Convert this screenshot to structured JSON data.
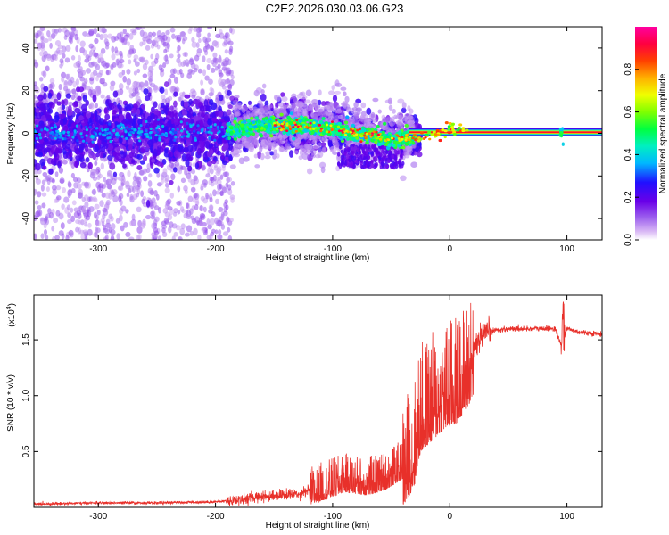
{
  "figure_title": "C2E2.2026.030.03.06.G23",
  "chart_data": [
    {
      "type": "heatmap",
      "title": "C2E2.2026.030.03.06.G23",
      "xlabel": "Height of straight line (km)",
      "ylabel": "Frequency (Hz)",
      "xlim": [
        -355,
        130
      ],
      "ylim": [
        -50,
        50
      ],
      "x_ticks": [
        -300,
        -200,
        -100,
        0,
        100
      ],
      "x_tick_labels": [
        "-300",
        "-200",
        "-100",
        "0",
        "100"
      ],
      "y_ticks": [
        -40,
        -20,
        0,
        20,
        40
      ],
      "y_tick_labels": [
        "-40",
        "-20",
        "0",
        "20",
        "40"
      ],
      "colorbar": {
        "label": "Normalized spectral amplitude",
        "range": [
          0,
          1
        ],
        "ticks": [
          0.0,
          0.2,
          0.4,
          0.6,
          0.8
        ],
        "tick_labels": [
          "0.0",
          "0.2",
          "0.4",
          "0.6",
          "0.8"
        ],
        "colormap": "rainbow (white-purple-blue-cyan-green-yellow-orange-red-magenta)"
      },
      "features": {
        "diffuse_scatter_region_km": [
          -355,
          -185
        ],
        "main_band_center_hz": [
          [
            -350,
            0
          ],
          [
            -200,
            1
          ],
          [
            -150,
            4
          ],
          [
            -110,
            3
          ],
          [
            -80,
            0
          ],
          [
            -50,
            -3
          ],
          [
            -30,
            -2
          ],
          [
            0,
            1
          ],
          [
            20,
            0.5
          ],
          [
            130,
            0.5
          ]
        ],
        "narrow_strong_band_start_km": -35,
        "narrow_strong_band_end_km": 130,
        "narrow_strong_band_freq_hz": 0.5,
        "spike_km": 95
      }
    },
    {
      "type": "line",
      "xlabel": "Height of straight line (km)",
      "ylabel": "SNR (10 * v/v)",
      "y_multiplier_label": "(x10",
      "y_multiplier_exp": "4",
      "y_multiplier_close": ")",
      "xlim": [
        -355,
        130
      ],
      "ylim": [
        0,
        1.9
      ],
      "x_ticks": [
        -300,
        -200,
        -100,
        0,
        100
      ],
      "x_tick_labels": [
        "-300",
        "-200",
        "-100",
        "0",
        "100"
      ],
      "y_ticks": [
        0.5,
        1.0,
        1.5
      ],
      "y_tick_labels": [
        "0.5",
        "1.0",
        "1.5"
      ],
      "series": [
        {
          "name": "SNR",
          "color": "#e8302a",
          "x": [
            -355,
            -300,
            -250,
            -200,
            -185,
            -160,
            -130,
            -110,
            -90,
            -70,
            -55,
            -40,
            -30,
            -25,
            -15,
            -5,
            5,
            15,
            25,
            35,
            50,
            80,
            90,
            95,
            100,
            110,
            130
          ],
          "y": [
            0.03,
            0.04,
            0.04,
            0.05,
            0.06,
            0.1,
            0.12,
            0.2,
            0.28,
            0.25,
            0.3,
            0.4,
            0.6,
            0.9,
            1.0,
            1.1,
            1.15,
            1.3,
            1.5,
            1.58,
            1.6,
            1.6,
            1.6,
            1.45,
            1.6,
            1.57,
            1.55
          ]
        }
      ]
    }
  ]
}
